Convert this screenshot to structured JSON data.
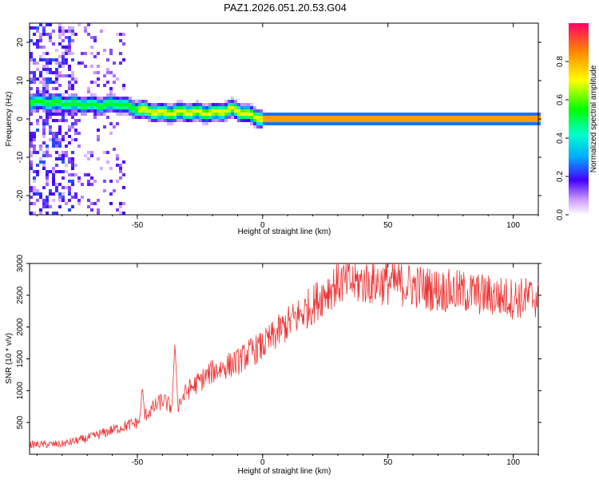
{
  "page_title": "PAZ1.2026.051.20.53.G04",
  "chart_data": [
    {
      "type": "heatmap",
      "title": "PAZ1.2026.051.20.53.G04",
      "xlabel": "Height of straight line (km)",
      "ylabel": "Frequency (Hz)",
      "xlim": [
        -93,
        110
      ],
      "ylim": [
        -25,
        25
      ],
      "xticks": [
        -50,
        0,
        50,
        100
      ],
      "yticks": [
        -20,
        -10,
        0,
        10,
        20
      ],
      "colorbar": {
        "label": "Normalized spectral amplitude",
        "range": [
          0,
          1
        ],
        "ticks": [
          0.0,
          0.2,
          0.4,
          0.6,
          0.8
        ]
      },
      "ridge": {
        "description": "dominant frequency ridge vs height",
        "x": [
          -93,
          -80,
          -65,
          -58,
          -50,
          -40,
          -30,
          -20,
          -12,
          -5,
          0,
          25,
          50,
          75,
          100,
          110
        ],
        "freq": [
          4.5,
          4.0,
          3.5,
          4.0,
          2.5,
          1.5,
          1.8,
          1.5,
          2.5,
          1.0,
          0.0,
          0.0,
          0.0,
          0.0,
          0.0,
          0.0
        ]
      }
    },
    {
      "type": "line",
      "xlabel": "Height of straight line (km)",
      "ylabel": "SNR (10 * v/v)",
      "xlim": [
        -93,
        110
      ],
      "ylim": [
        0,
        3000
      ],
      "xticks": [
        -50,
        0,
        50,
        100
      ],
      "yticks": [
        500,
        1000,
        1500,
        2000,
        2500,
        3000
      ],
      "series": [
        {
          "name": "SNR",
          "color": "#ee3333",
          "x": [
            -93,
            -80,
            -70,
            -60,
            -50,
            -40,
            -35,
            -30,
            -20,
            -10,
            -5,
            0,
            10,
            20,
            25,
            30,
            40,
            50,
            60,
            70,
            80,
            90,
            100,
            110
          ],
          "y": [
            150,
            160,
            250,
            380,
            500,
            850,
            700,
            1000,
            1300,
            1450,
            1600,
            1700,
            2050,
            2350,
            2550,
            2700,
            2700,
            2700,
            2650,
            2580,
            2550,
            2500,
            2450,
            2470
          ]
        }
      ]
    }
  ]
}
